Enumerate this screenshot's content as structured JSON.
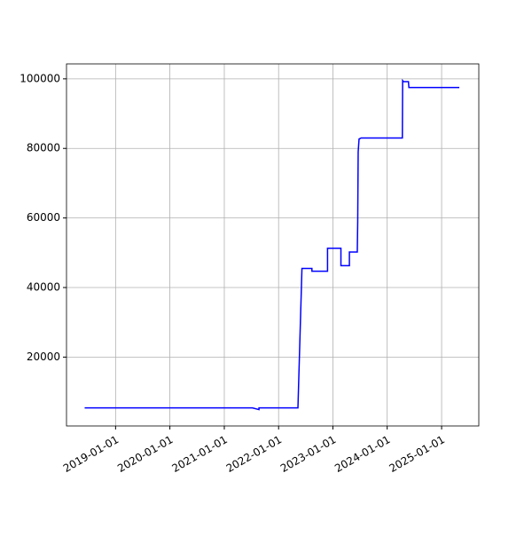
{
  "chart_data": {
    "type": "line",
    "x": [
      "2018-06-07",
      "2021-07-09",
      "2021-08-22",
      "2021-08-22",
      "2022-05-11",
      "2022-06-07",
      "2022-08-13",
      "2022-08-13",
      "2022-11-26",
      "2022-11-26",
      "2023-02-24",
      "2023-02-24",
      "2023-04-22",
      "2023-04-22",
      "2023-06-14",
      "2023-06-17",
      "2023-06-20",
      "2023-06-26",
      "2023-07-10",
      "2024-04-12",
      "2024-04-14",
      "2024-04-20",
      "2024-05-23",
      "2024-05-26",
      "2025-04-30"
    ],
    "series": [
      {
        "color": "#0000ff",
        "values": [
          5400,
          5400,
          4900,
          5400,
          5400,
          45500,
          45500,
          44700,
          44700,
          51300,
          51300,
          46300,
          46300,
          50200,
          50200,
          59000,
          79000,
          82700,
          83000,
          83000,
          99500,
          99200,
          99200,
          97500,
          97500
        ]
      }
    ],
    "xlim": [
      "2018-02-05",
      "2025-09-08"
    ],
    "xticks": [
      "2019-01-01",
      "2020-01-01",
      "2021-01-01",
      "2022-01-01",
      "2023-01-01",
      "2024-01-01",
      "2025-01-01"
    ],
    "ylim": [
      200,
      104300
    ],
    "yticks": [
      20000,
      40000,
      60000,
      80000,
      100000
    ],
    "grid": true
  }
}
